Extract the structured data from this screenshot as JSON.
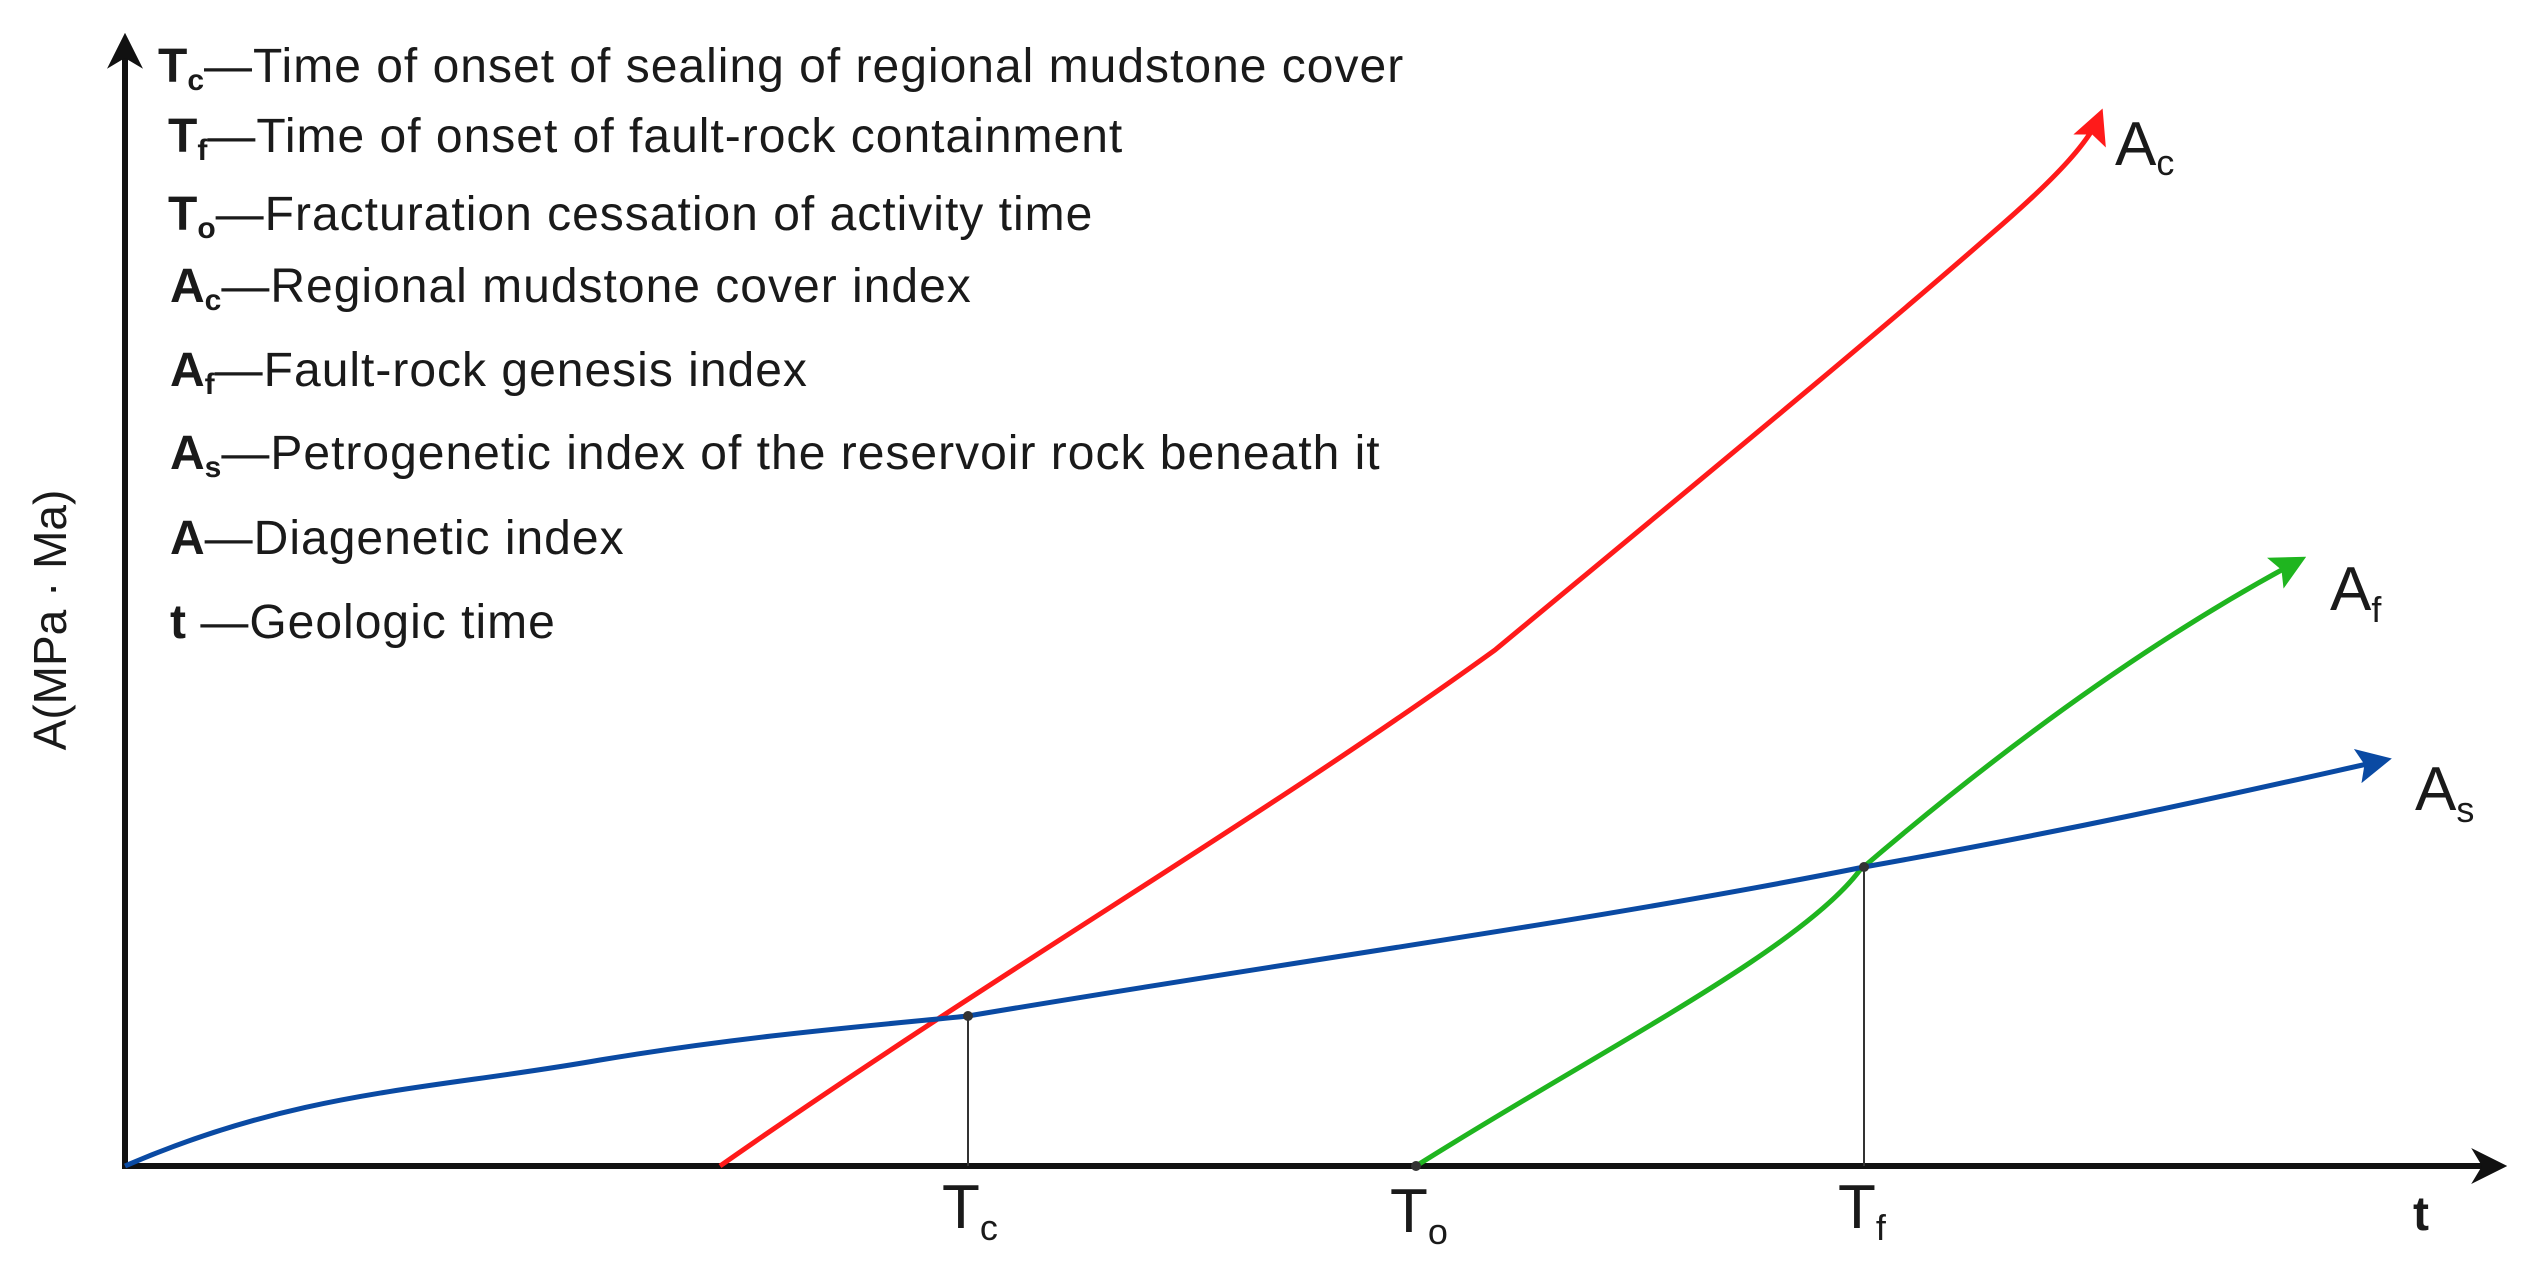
{
  "y_axis_label": "A(MPa · Ma)",
  "x_axis_label": "t",
  "legend": [
    {
      "sym": "T",
      "sub": "c",
      "text": "—Time of onset of sealing of regional mudstone cover"
    },
    {
      "sym": "T",
      "sub": "f",
      "text": "—Time of onset of fault-rock containment"
    },
    {
      "sym": "T",
      "sub": "o",
      "text": "—Fracturation cessation of activity time"
    },
    {
      "sym": "A",
      "sub": "c",
      "text": "—Regional mudstone cover index"
    },
    {
      "sym": "A",
      "sub": "f",
      "text": "—Fault-rock genesis index"
    },
    {
      "sym": "A",
      "sub": "s",
      "text": "—Petrogenetic index of the reservoir rock beneath it"
    },
    {
      "sym": "A",
      "sub": "",
      "text": "—Diagenetic index"
    },
    {
      "sym": "t",
      "sub": "",
      "text": " —Geologic time"
    }
  ],
  "curves": {
    "ac": {
      "main": "A",
      "sub": "c",
      "color": "#ff1a1a"
    },
    "af": {
      "main": "A",
      "sub": "f",
      "color": "#1fb51f"
    },
    "as": {
      "main": "A",
      "sub": "s",
      "color": "#0a4aa3"
    }
  },
  "ticks": {
    "tc": {
      "main": "T",
      "sub": "c"
    },
    "to": {
      "main": "T",
      "sub": "o"
    },
    "tf": {
      "main": "T",
      "sub": "f"
    }
  },
  "axis_color": "#111111"
}
